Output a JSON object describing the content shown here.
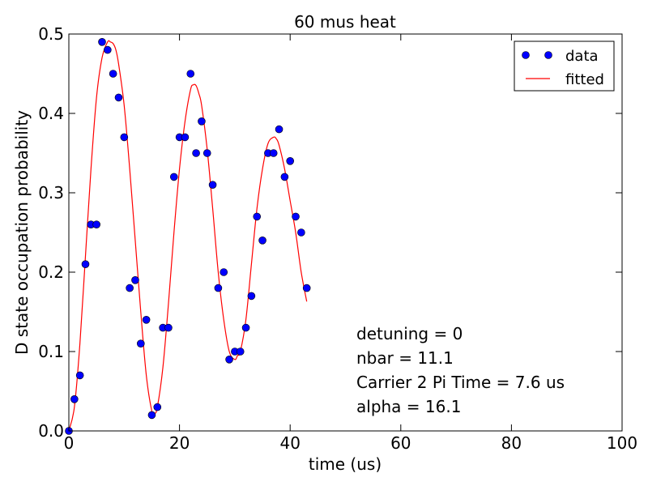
{
  "chart_data": {
    "type": "scatter",
    "title": "60 mus heat",
    "xlabel": "time (us)",
    "ylabel": "D state occupation probability",
    "xlim": [
      0,
      100
    ],
    "ylim": [
      0,
      0.5
    ],
    "xticks": [
      0,
      20,
      40,
      60,
      80,
      100
    ],
    "yticks": [
      0.0,
      0.1,
      0.2,
      0.3,
      0.4,
      0.5
    ],
    "xtick_labels": [
      "0",
      "20",
      "40",
      "60",
      "80",
      "100"
    ],
    "ytick_labels": [
      "0.0",
      "0.1",
      "0.2",
      "0.3",
      "0.4",
      "0.5"
    ],
    "grid": false,
    "legend_position": "top-right",
    "series": [
      {
        "name": "data",
        "style": "markers",
        "color": "#0000ff",
        "x": [
          0,
          1,
          2,
          3,
          4,
          5,
          6,
          7,
          8,
          9,
          10,
          11,
          12,
          13,
          14,
          15,
          16,
          17,
          18,
          19,
          20,
          21,
          22,
          23,
          24,
          25,
          26,
          27,
          28,
          29,
          30,
          31,
          32,
          33,
          34,
          35,
          36,
          37,
          38,
          39,
          40,
          41,
          42,
          43
        ],
        "y": [
          0.0,
          0.04,
          0.07,
          0.21,
          0.26,
          0.26,
          0.49,
          0.48,
          0.45,
          0.42,
          0.37,
          0.18,
          0.19,
          0.11,
          0.14,
          0.02,
          0.03,
          0.13,
          0.13,
          0.32,
          0.37,
          0.37,
          0.45,
          0.35,
          0.39,
          0.35,
          0.31,
          0.18,
          0.2,
          0.09,
          0.1,
          0.1,
          0.13,
          0.17,
          0.27,
          0.24,
          0.35,
          0.35,
          0.38,
          0.32,
          0.34,
          0.27,
          0.25,
          0.18
        ]
      },
      {
        "name": "fitted",
        "style": "line",
        "color": "#ff0000",
        "x": [
          0,
          1,
          2,
          3,
          4,
          5,
          6,
          7,
          7.5,
          8,
          8.5,
          9,
          10,
          11,
          12,
          13,
          14,
          15,
          15.5,
          16,
          17,
          18,
          19,
          20,
          21,
          22,
          22.5,
          23,
          23.5,
          24,
          25,
          26,
          27,
          28,
          29,
          30,
          30.5,
          31,
          32,
          33,
          34,
          35,
          36,
          37,
          37.5,
          38,
          39,
          40,
          41,
          42,
          43
        ],
        "y": [
          0.0,
          0.03,
          0.11,
          0.22,
          0.33,
          0.42,
          0.47,
          0.49,
          0.49,
          0.488,
          0.48,
          0.462,
          0.41,
          0.33,
          0.24,
          0.15,
          0.07,
          0.025,
          0.022,
          0.03,
          0.08,
          0.16,
          0.25,
          0.33,
          0.39,
          0.43,
          0.436,
          0.435,
          0.425,
          0.41,
          0.355,
          0.28,
          0.2,
          0.14,
          0.1,
          0.09,
          0.095,
          0.1,
          0.14,
          0.21,
          0.28,
          0.33,
          0.362,
          0.37,
          0.368,
          0.36,
          0.33,
          0.29,
          0.25,
          0.2,
          0.163
        ]
      }
    ],
    "annotations": [
      "detuning = 0",
      "nbar = 11.1",
      "Carrier 2 Pi Time = 7.6 us",
      "alpha = 16.1"
    ]
  }
}
